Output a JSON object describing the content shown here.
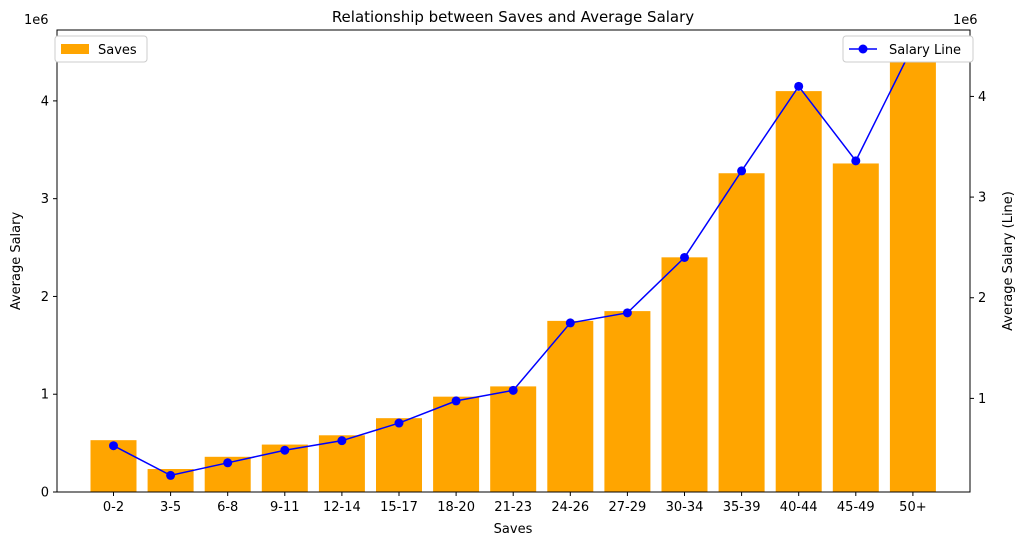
{
  "chart_data": {
    "type": "bar",
    "title": "Relationship between Saves and Average Salary",
    "xlabel": "Saves",
    "ylabel": "Average Salary",
    "ylabel_right": "Average Salary (Line)",
    "offset_left": "1e6",
    "offset_right": "1e6",
    "categories": [
      "0-2",
      "3-5",
      "6-8",
      "9-11",
      "12-14",
      "15-17",
      "18-20",
      "21-23",
      "24-26",
      "27-29",
      "30-34",
      "35-39",
      "40-44",
      "45-49",
      "50+"
    ],
    "series": [
      {
        "name": "Saves",
        "kind": "bar",
        "axis": "left",
        "color": "#ffa500",
        "values": [
          530000,
          235000,
          360000,
          485000,
          580000,
          755000,
          975000,
          1080000,
          1750000,
          1850000,
          2400000,
          3260000,
          4100000,
          3360000,
          4500000
        ]
      },
      {
        "name": "Salary Line",
        "kind": "line",
        "axis": "right",
        "color": "#0000ff",
        "marker": "circle",
        "values": [
          530000,
          235000,
          360000,
          485000,
          580000,
          755000,
          975000,
          1080000,
          1750000,
          1850000,
          2400000,
          3260000,
          4100000,
          3360000,
          4500000
        ]
      }
    ],
    "ylim": [
      0,
      4725000
    ],
    "ylim_right": [
      0.07,
      4.66
    ],
    "yticks_left": [
      0,
      1,
      2,
      3,
      4
    ],
    "yticks_right": [
      1,
      2,
      3,
      4
    ],
    "legend_left": "upper-left",
    "legend_right": "upper-right",
    "grid": false
  }
}
